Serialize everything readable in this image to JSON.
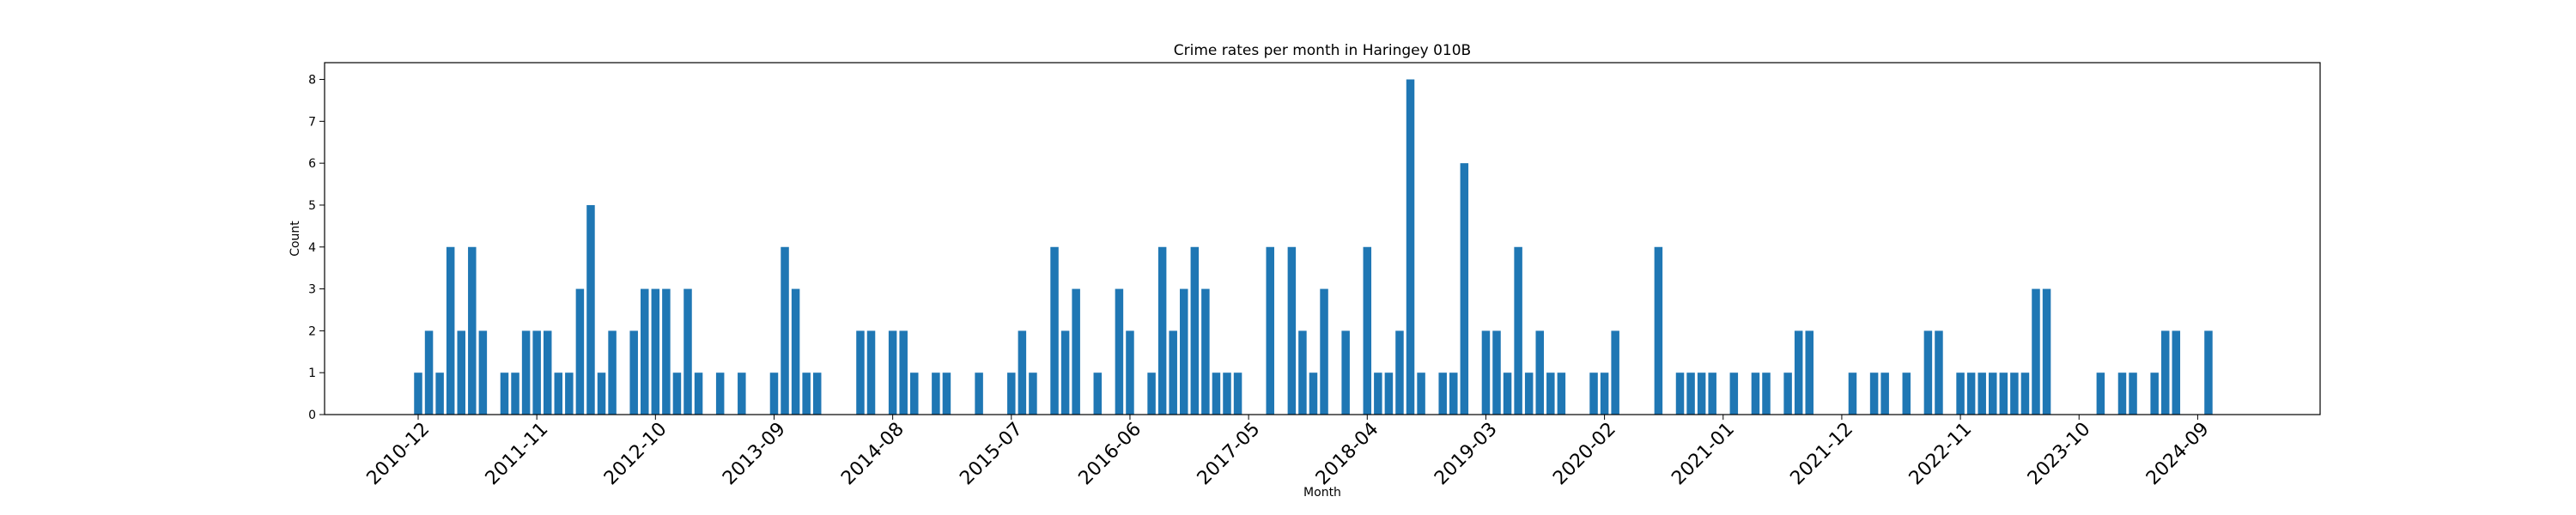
{
  "chart_data": {
    "type": "bar",
    "title": "Crime rates per month in Haringey 010B",
    "xlabel": "Month",
    "ylabel": "Count",
    "ylim": [
      0,
      8.4
    ],
    "y_ticks": [
      0,
      1,
      2,
      3,
      4,
      5,
      6,
      7,
      8
    ],
    "x_tick_labels": [
      "2010-12",
      "2011-11",
      "2012-10",
      "2013-09",
      "2014-08",
      "2015-07",
      "2016-06",
      "2017-05",
      "2018-04",
      "2019-03",
      "2020-02",
      "2021-01",
      "2021-12",
      "2022-11",
      "2023-10",
      "2024-09"
    ],
    "grid": false,
    "legend": "none",
    "bar_color": "#1f77b4",
    "categories": [
      "2010-12",
      "2011-01",
      "2011-02",
      "2011-03",
      "2011-04",
      "2011-05",
      "2011-06",
      "2011-08",
      "2011-09",
      "2011-10",
      "2011-11",
      "2011-12",
      "2012-01",
      "2012-02",
      "2012-03",
      "2012-04",
      "2012-05",
      "2012-06",
      "2012-08",
      "2012-09",
      "2012-10",
      "2012-11",
      "2012-12",
      "2013-01",
      "2013-02",
      "2013-04",
      "2013-06",
      "2013-09",
      "2013-10",
      "2013-11",
      "2013-12",
      "2014-01",
      "2014-05",
      "2014-06",
      "2014-08",
      "2014-09",
      "2014-10",
      "2014-12",
      "2015-01",
      "2015-04",
      "2015-07",
      "2015-08",
      "2015-09",
      "2015-11",
      "2015-12",
      "2016-01",
      "2016-03",
      "2016-05",
      "2016-06",
      "2016-08",
      "2016-09",
      "2016-10",
      "2016-11",
      "2016-12",
      "2017-01",
      "2017-02",
      "2017-03",
      "2017-04",
      "2017-07",
      "2017-09",
      "2017-10",
      "2017-11",
      "2017-12",
      "2018-02",
      "2018-04",
      "2018-05",
      "2018-06",
      "2018-07",
      "2018-08",
      "2018-09",
      "2018-11",
      "2018-12",
      "2019-01",
      "2019-03",
      "2019-04",
      "2019-05",
      "2019-06",
      "2019-07",
      "2019-08",
      "2019-09",
      "2019-10",
      "2020-01",
      "2020-02",
      "2020-03",
      "2020-07",
      "2020-09",
      "2020-10",
      "2020-11",
      "2020-12",
      "2021-02",
      "2021-04",
      "2021-05",
      "2021-07",
      "2021-08",
      "2021-09",
      "2022-01",
      "2022-03",
      "2022-04",
      "2022-06",
      "2022-08",
      "2022-09",
      "2022-11",
      "2022-12",
      "2023-01",
      "2023-02",
      "2023-03",
      "2023-04",
      "2023-05",
      "2023-06",
      "2023-07",
      "2023-12",
      "2024-02",
      "2024-03",
      "2024-05",
      "2024-06",
      "2024-07",
      "2024-10"
    ],
    "values": [
      1,
      2,
      1,
      4,
      2,
      4,
      2,
      1,
      1,
      2,
      2,
      2,
      1,
      1,
      3,
      5,
      1,
      2,
      2,
      3,
      3,
      3,
      1,
      3,
      1,
      1,
      1,
      1,
      4,
      3,
      1,
      1,
      2,
      2,
      2,
      2,
      1,
      1,
      1,
      1,
      1,
      2,
      1,
      4,
      2,
      3,
      1,
      3,
      2,
      1,
      4,
      2,
      3,
      4,
      3,
      1,
      1,
      1,
      4,
      4,
      2,
      1,
      3,
      2,
      4,
      1,
      1,
      2,
      8,
      1,
      1,
      1,
      6,
      2,
      2,
      1,
      4,
      1,
      2,
      1,
      1,
      1,
      1,
      2,
      4,
      1,
      1,
      1,
      1,
      1,
      1,
      1,
      1,
      2,
      2,
      1,
      1,
      1,
      1,
      2,
      2,
      1,
      1,
      1,
      1,
      1,
      1,
      1,
      3,
      3,
      1,
      1,
      1,
      1,
      2,
      2,
      2
    ],
    "month_index": [
      0,
      1,
      2,
      3,
      4,
      5,
      6,
      8,
      9,
      10,
      11,
      12,
      13,
      14,
      15,
      16,
      17,
      18,
      20,
      21,
      22,
      23,
      24,
      25,
      26,
      28,
      30,
      33,
      34,
      35,
      36,
      37,
      41,
      42,
      44,
      45,
      46,
      48,
      49,
      52,
      55,
      56,
      57,
      59,
      60,
      61,
      63,
      65,
      66,
      68,
      69,
      70,
      71,
      72,
      73,
      74,
      75,
      76,
      79,
      81,
      82,
      83,
      84,
      86,
      88,
      89,
      90,
      91,
      92,
      93,
      95,
      96,
      97,
      99,
      100,
      101,
      102,
      103,
      104,
      105,
      106,
      109,
      110,
      111,
      115,
      117,
      118,
      119,
      120,
      122,
      124,
      125,
      127,
      128,
      129,
      133,
      135,
      136,
      138,
      140,
      141,
      143,
      144,
      145,
      146,
      147,
      148,
      149,
      150,
      151,
      156,
      158,
      159,
      161,
      162,
      163,
      166
    ]
  }
}
